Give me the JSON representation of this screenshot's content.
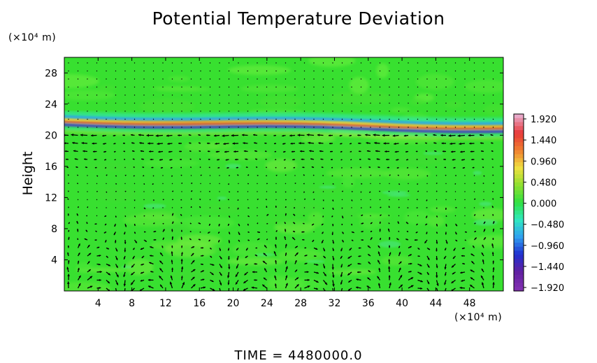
{
  "chart_data": {
    "type": "heatmap",
    "title": "Potential Temperature Deviation",
    "ylabel": "Height",
    "x_unit_label": "(×10⁴ m)",
    "y_unit_label": "(×10⁴ m)",
    "xlim": [
      0,
      52
    ],
    "ylim": [
      0,
      30
    ],
    "x_ticks": [
      "4",
      "8",
      "12",
      "16",
      "20",
      "24",
      "28",
      "32",
      "36",
      "40",
      "44",
      "48"
    ],
    "y_ticks": [
      "4",
      "8",
      "12",
      "16",
      "20",
      "24",
      "28"
    ],
    "background_value": 0.0,
    "features": [
      {
        "kind": "inversion-band",
        "height_range": [
          20.0,
          23.0
        ],
        "min": -1.92,
        "max": 1.92
      },
      {
        "kind": "wind-vectors",
        "region": "troposphere",
        "height_range": [
          0,
          20
        ]
      },
      {
        "kind": "stratosphere-quiet",
        "height_range": [
          23,
          30
        ]
      }
    ],
    "colorbar": {
      "ticks": [
        "1.920",
        "1.440",
        "0.960",
        "0.480",
        "0.000",
        "−0.480",
        "−0.960",
        "−1.440",
        "−1.920"
      ],
      "range": [
        -1.92,
        1.92
      ],
      "colors": [
        "#e8a8c8",
        "#e83838",
        "#f08030",
        "#f0e040",
        "#90e030",
        "#30e040",
        "#30e8c0",
        "#30a0f0",
        "#2030d0",
        "#6020a0",
        "#8030b0"
      ]
    },
    "time_label": "TIME  =  4480000.0"
  }
}
